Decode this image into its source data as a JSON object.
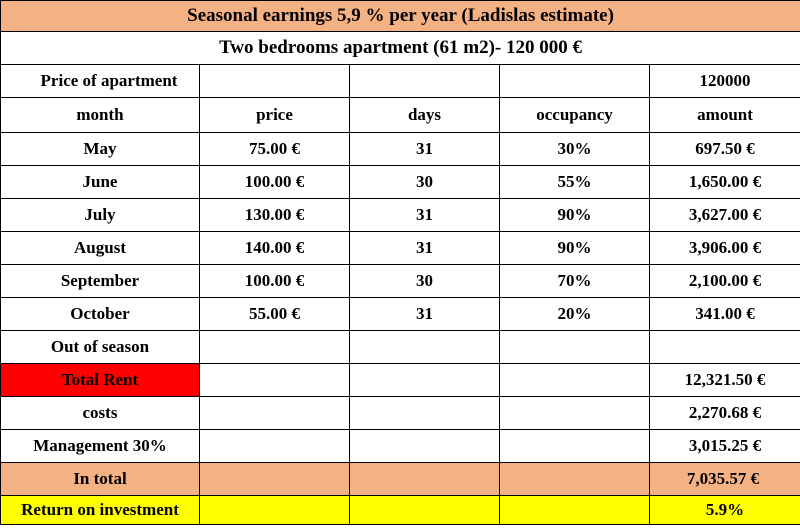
{
  "title": "Seasonal earnings 5,9 % per year (Ladislas estimate)",
  "subtitle": "Two  bedrooms apartment  (61 m2)- 120 000 €",
  "price_row": {
    "label": "Price of apartment",
    "amount": "120000"
  },
  "headers": {
    "month": "month",
    "price": "price",
    "days": "days",
    "occupancy": "occupancy",
    "amount": "amount"
  },
  "months": [
    {
      "month": "May",
      "price": "75.00 €",
      "days": "31",
      "occupancy": "30%",
      "amount": "697.50 €"
    },
    {
      "month": "June",
      "price": "100.00 €",
      "days": "30",
      "occupancy": "55%",
      "amount": "1,650.00 €"
    },
    {
      "month": "July",
      "price": "130.00 €",
      "days": "31",
      "occupancy": "90%",
      "amount": "3,627.00 €"
    },
    {
      "month": "August",
      "price": "140.00 €",
      "days": "31",
      "occupancy": "90%",
      "amount": "3,906.00 €"
    },
    {
      "month": "September",
      "price": "100.00 €",
      "days": "30",
      "occupancy": "70%",
      "amount": "2,100.00 €"
    },
    {
      "month": "October",
      "price": "55.00 €",
      "days": "31",
      "occupancy": "20%",
      "amount": "341.00 €"
    }
  ],
  "out_of_season": "Out of season",
  "total_rent": {
    "label": "Total Rent",
    "amount": "12,321.50 €"
  },
  "costs": {
    "label": "costs",
    "amount": "2,270.68 €"
  },
  "management": {
    "label": "Management 30%",
    "amount": "3,015.25 €"
  },
  "in_total": {
    "label": "In total",
    "amount": "7,035.57 €"
  },
  "roi": {
    "label": "Return on investment",
    "amount": "5.9%"
  },
  "colors": {
    "title_bg": "#f4b183",
    "total_rent_label_bg": "#ff0000",
    "in_total_row_bg": "#f4b183",
    "in_total_amount_bg": "#c55a11",
    "roi_row_bg": "#ffff00"
  }
}
